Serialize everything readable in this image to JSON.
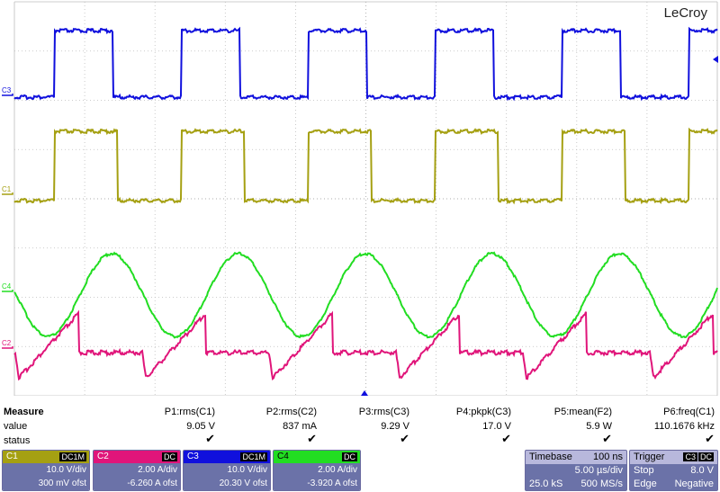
{
  "brand": "LeCroy",
  "trace_labels": [
    "C3",
    "C1",
    "C4",
    "C2"
  ],
  "measure": {
    "title": "Measure",
    "row_labels": [
      "value",
      "status"
    ],
    "params": [
      {
        "name": "P1:rms(C1)",
        "value": "9.05 V"
      },
      {
        "name": "P2:rms(C2)",
        "value": "837 mA"
      },
      {
        "name": "P3:rms(C3)",
        "value": "9.29 V"
      },
      {
        "name": "P4:pkpk(C3)",
        "value": "17.0 V"
      },
      {
        "name": "P5:mean(F2)",
        "value": "5.9 W"
      },
      {
        "name": "P6:freq(C1)",
        "value": "110.1676 kHz"
      }
    ],
    "status_icon": "check-icon"
  },
  "channels": [
    {
      "id": "C1",
      "coupling": "DC1M",
      "scale": "10.0 V/div",
      "offset": "300 mV ofst",
      "color": "#a5a012"
    },
    {
      "id": "C2",
      "coupling": "DC",
      "scale": "2.00 A/div",
      "offset": "-6.260 A ofst",
      "color": "#e0157a"
    },
    {
      "id": "C3",
      "coupling": "DC1M",
      "scale": "10.0 V/div",
      "offset": "20.30 V ofst",
      "color": "#1010dd"
    },
    {
      "id": "C4",
      "coupling": "DC",
      "scale": "2.00 A/div",
      "offset": "-3.920 A ofst",
      "color": "#22dd22"
    }
  ],
  "timebase": {
    "label": "Timebase",
    "delay": "100 ns",
    "scale": "5.00 µs/div",
    "samples": "25.0 kS",
    "rate": "500 MS/s"
  },
  "trigger": {
    "label": "Trigger",
    "source": "C3",
    "coupling": "DC",
    "mode": "Stop",
    "level": "8.0 V",
    "type": "Edge",
    "slope": "Negative"
  },
  "colors": {
    "grid": "#bdbdbd",
    "panel": "#6b72a8",
    "trace_c1": "#a5a012",
    "trace_c2": "#e0157a",
    "trace_c3": "#1010dd",
    "trace_c4": "#22dd22"
  }
}
